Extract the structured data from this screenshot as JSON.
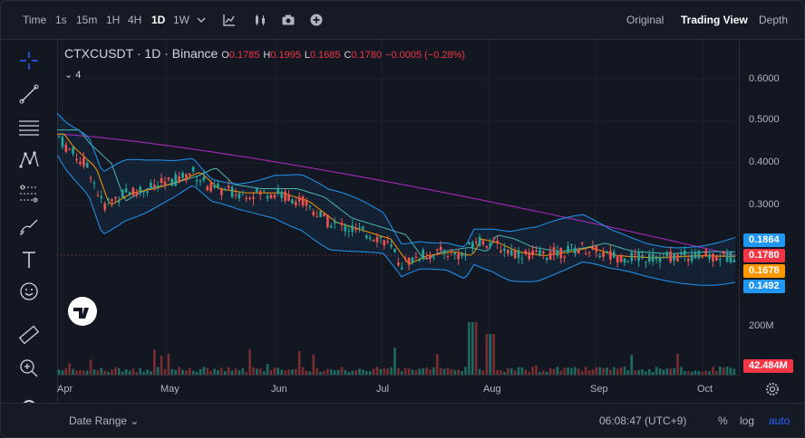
{
  "toolbar": {
    "time_label": "Time",
    "intervals": [
      "1s",
      "15m",
      "1H",
      "4H",
      "1D",
      "1W"
    ],
    "active_interval": "1D",
    "views": [
      "Original",
      "Trading View",
      "Depth"
    ],
    "active_view": "Trading View"
  },
  "legend": {
    "symbol": "CTXCUSDT · 1D · Binance",
    "open_label": "O",
    "open": "0.1785",
    "high_label": "H",
    "high": "0.1995",
    "low_label": "L",
    "low": "0.1685",
    "close_label": "C",
    "close": "0.1780",
    "change": "−0.0005 (−0.28%)",
    "indicators_count": "4"
  },
  "price_axis": {
    "ticks": [
      "0.6000",
      "0.5000",
      "0.4000",
      "0.3000",
      "200M"
    ],
    "labels": [
      {
        "text": "0.1864",
        "color": "#2196f3"
      },
      {
        "text": "0.1780",
        "color": "#f23645"
      },
      {
        "text": "0.1678",
        "color": "#ff9800"
      },
      {
        "text": "0.1492",
        "color": "#2196f3"
      }
    ],
    "volume_label": "42.484M",
    "volume_color": "#f23645"
  },
  "time_axis": {
    "labels": [
      "Apr",
      "May",
      "Jun",
      "Jul",
      "Aug",
      "Sep",
      "Oct"
    ]
  },
  "bottom": {
    "date_range": "Date Range",
    "clock": "06:08:47 (UTC+9)",
    "percent": "%",
    "log": "log",
    "auto": "auto"
  },
  "colors": {
    "up": "#26a69a",
    "down": "#ef5350",
    "bb": "#2196f3",
    "ma_slow": "#9c27b0",
    "ma_mid": "#4db6ac",
    "ma_fast": "#ff9800"
  },
  "icons": [
    "crosshair-icon",
    "trend-line-icon",
    "fib-icon",
    "pattern-icon",
    "projection-icon",
    "brush-icon",
    "text-icon",
    "emoji-icon",
    "ruler-icon",
    "zoom-icon",
    "magnet-icon"
  ]
}
